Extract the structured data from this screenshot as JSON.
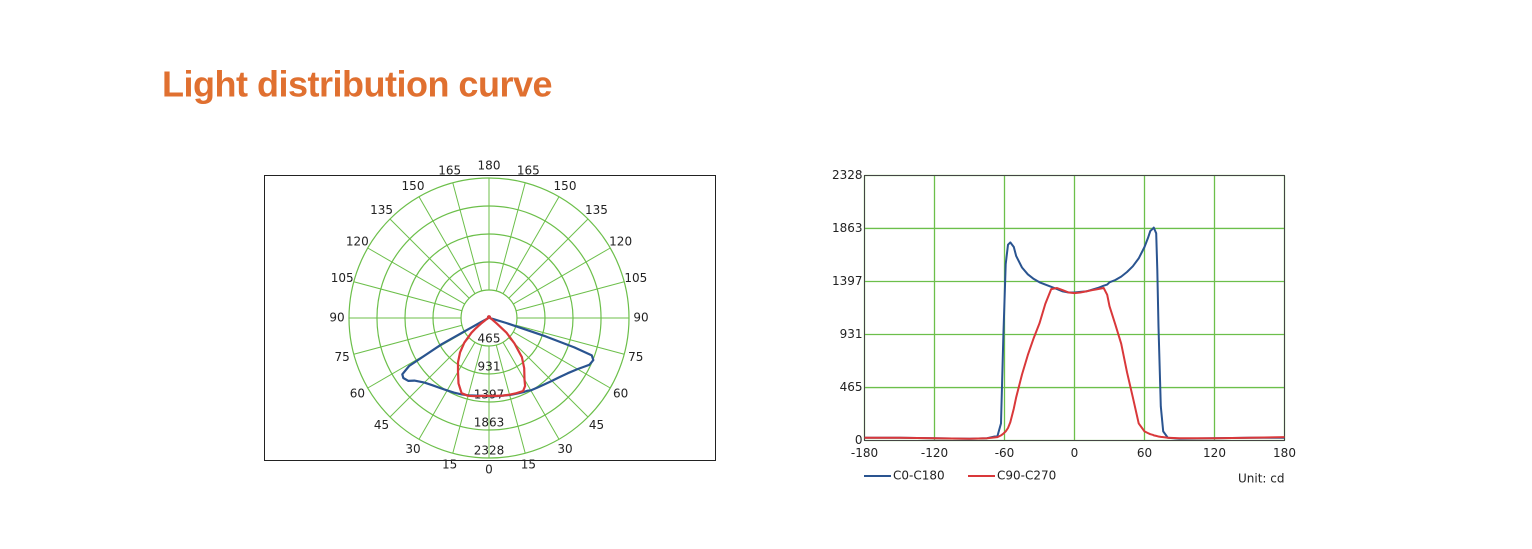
{
  "title": "Light distribution curve",
  "chart_data": [
    {
      "type": "polar",
      "thetaticks": [
        0,
        15,
        30,
        45,
        60,
        75,
        90,
        105,
        120,
        135,
        150,
        165,
        180
      ],
      "rlim": [
        0,
        2328
      ],
      "rticks": [
        465,
        931,
        1397,
        1863,
        2328
      ],
      "grid": true,
      "grid_color": "#6cbf4a",
      "series": [
        {
          "color": "#2a5490",
          "theta": [
            -180,
            -150,
            -120,
            -90,
            -75,
            -66,
            -63,
            -61,
            -59,
            -57,
            -55,
            -52,
            -50,
            -45,
            -40,
            -35,
            -30,
            -25,
            -20,
            -15,
            -10,
            -5,
            0,
            5,
            10,
            15,
            20,
            25,
            28,
            30,
            35,
            40,
            45,
            50,
            55,
            60,
            63,
            65,
            67,
            68,
            70,
            71,
            72,
            74,
            76,
            80,
            90,
            120,
            150,
            180
          ],
          "r": [
            25,
            25,
            20,
            15,
            20,
            40,
            150,
            900,
            1550,
            1720,
            1740,
            1700,
            1620,
            1520,
            1460,
            1420,
            1390,
            1370,
            1350,
            1330,
            1310,
            1300,
            1300,
            1305,
            1310,
            1325,
            1340,
            1360,
            1370,
            1390,
            1410,
            1440,
            1480,
            1530,
            1600,
            1700,
            1780,
            1840,
            1860,
            1870,
            1820,
            1500,
            1000,
            300,
            80,
            25,
            15,
            20,
            25,
            25
          ]
        },
        {
          "color": "#d9383a",
          "theta": [
            -180,
            -150,
            -120,
            -90,
            -75,
            -66,
            -63,
            -61,
            -59,
            -57,
            -55,
            -52,
            -50,
            -45,
            -40,
            -35,
            -30,
            -25,
            -20,
            -15,
            -10,
            -5,
            0,
            5,
            10,
            15,
            20,
            25,
            28,
            30,
            35,
            40,
            45,
            50,
            55,
            60,
            63,
            65,
            67,
            68,
            70,
            71,
            72,
            74,
            76,
            80,
            90,
            120,
            150,
            180
          ],
          "r": [
            25,
            25,
            20,
            15,
            20,
            30,
            45,
            60,
            80,
            110,
            160,
            280,
            380,
            580,
            750,
            900,
            1030,
            1200,
            1330,
            1340,
            1320,
            1300,
            1295,
            1300,
            1310,
            1320,
            1330,
            1340,
            1280,
            1180,
            1020,
            850,
            600,
            380,
            150,
            80,
            65,
            55,
            50,
            45,
            40,
            38,
            35,
            32,
            30,
            25,
            20,
            20,
            25,
            30
          ]
        }
      ]
    },
    {
      "type": "line",
      "x": [
        -180,
        -150,
        -120,
        -90,
        -75,
        -66,
        -63,
        -61,
        -59,
        -57,
        -55,
        -52,
        -50,
        -45,
        -40,
        -35,
        -30,
        -25,
        -20,
        -15,
        -10,
        -5,
        0,
        5,
        10,
        15,
        20,
        25,
        28,
        30,
        35,
        40,
        45,
        50,
        55,
        60,
        63,
        65,
        67,
        68,
        70,
        71,
        72,
        74,
        76,
        80,
        90,
        120,
        150,
        180
      ],
      "xlim": [
        -180,
        180
      ],
      "xticks": [
        -180,
        -120,
        -60,
        0,
        60,
        120,
        180
      ],
      "ylim": [
        0,
        2328
      ],
      "yticks": [
        0,
        465,
        931,
        1397,
        1863,
        2328
      ],
      "grid": true,
      "grid_color": "#6cbf4a",
      "annotation": "Unit: cd",
      "series": [
        {
          "name": "C0-C180",
          "color": "#2a5490",
          "values": [
            25,
            25,
            20,
            15,
            20,
            40,
            150,
            900,
            1550,
            1720,
            1740,
            1700,
            1620,
            1520,
            1460,
            1420,
            1390,
            1370,
            1350,
            1330,
            1310,
            1300,
            1300,
            1305,
            1310,
            1325,
            1340,
            1360,
            1370,
            1390,
            1410,
            1440,
            1480,
            1530,
            1600,
            1700,
            1780,
            1840,
            1860,
            1870,
            1820,
            1500,
            1000,
            300,
            80,
            25,
            15,
            20,
            25,
            25
          ]
        },
        {
          "name": "C90-C270",
          "color": "#d9383a",
          "values": [
            25,
            25,
            20,
            15,
            20,
            30,
            45,
            60,
            80,
            110,
            160,
            280,
            380,
            580,
            750,
            900,
            1030,
            1200,
            1330,
            1340,
            1320,
            1300,
            1295,
            1300,
            1310,
            1320,
            1330,
            1340,
            1280,
            1180,
            1020,
            850,
            600,
            380,
            150,
            80,
            65,
            55,
            50,
            45,
            40,
            38,
            35,
            32,
            30,
            25,
            20,
            20,
            25,
            30
          ]
        }
      ]
    }
  ]
}
